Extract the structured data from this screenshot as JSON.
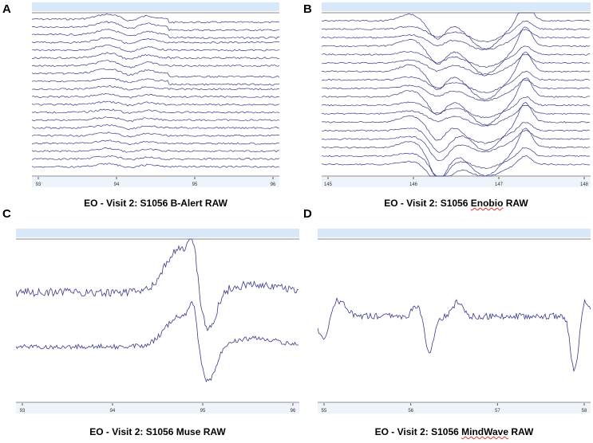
{
  "panels": [
    {
      "letter": "A",
      "caption": "EO - Visit 2: S1056 B-Alert RAW",
      "x_ticks": [
        "93",
        "94",
        "95",
        "96"
      ],
      "channel_count": 20
    },
    {
      "letter": "B",
      "caption_prefix": "EO - Visit 2: S1056 ",
      "caption_device": "Enobio",
      "caption_suffix": " RAW",
      "x_ticks": [
        "145",
        "146",
        "147",
        "148"
      ],
      "channel_count": 18
    },
    {
      "letter": "C",
      "caption": "EO - Visit 2: S1056 Muse RAW",
      "x_ticks": [
        "93",
        "94",
        "95",
        "96"
      ],
      "channel_count": 2
    },
    {
      "letter": "D",
      "caption_prefix": "EO - Visit 2: S1056 ",
      "caption_device": "MindWave",
      "caption_suffix": " RAW",
      "x_ticks": [
        "55",
        "56",
        "57",
        "58"
      ],
      "channel_count": 1
    }
  ],
  "chart_data": [
    {
      "type": "line",
      "x": [
        93,
        94,
        95,
        96
      ],
      "series_count": 20
    },
    {
      "type": "line",
      "x": [
        145,
        146,
        147,
        148
      ],
      "series_count": 18
    },
    {
      "type": "line",
      "x": [
        93,
        94,
        95,
        96
      ],
      "series_count": 2
    },
    {
      "type": "line",
      "x": [
        55,
        56,
        57,
        58
      ],
      "series_count": 1
    }
  ],
  "colors": {
    "trace": "#3a3a8c",
    "header_band": "#d8e8f8",
    "frame": "#8a8a8a"
  }
}
